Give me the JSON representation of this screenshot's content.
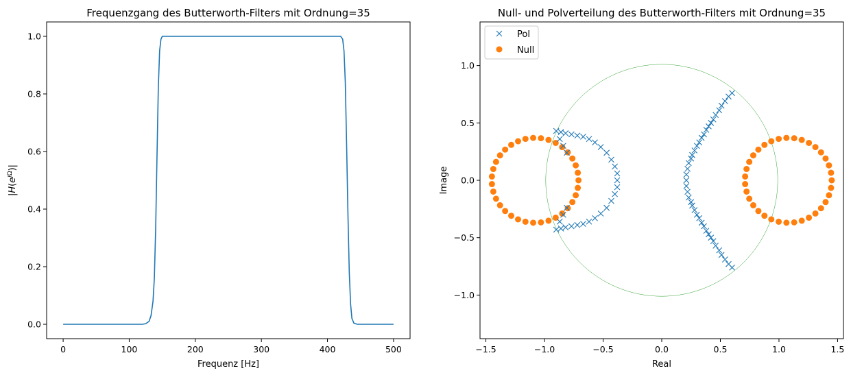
{
  "chart_data": [
    {
      "type": "line",
      "title": "Frequenzgang des Butterworth-Filters mit Ordnung=35",
      "xlabel": "Frequenz [Hz]",
      "ylabel": "|H(e^{jΩ})|",
      "xlim": [
        -25,
        525
      ],
      "ylim": [
        -0.05,
        1.05
      ],
      "xticks": [
        0,
        100,
        200,
        300,
        400,
        500
      ],
      "xtick_labels": [
        "0",
        "100",
        "200",
        "300",
        "400",
        "500"
      ],
      "yticks": [
        0.0,
        0.2,
        0.4,
        0.6,
        0.8,
        1.0
      ],
      "ytick_labels": [
        "0.0",
        "0.2",
        "0.4",
        "0.6",
        "0.8",
        "1.0"
      ],
      "series": [
        {
          "color": "#1f77b4",
          "x": [
            0,
            100,
            120,
            125,
            130,
            133,
            136,
            138,
            140,
            142,
            144,
            146,
            148,
            150,
            155,
            200,
            300,
            400,
            420,
            423,
            425,
            427,
            429,
            431,
            433,
            435,
            437,
            440,
            445,
            450,
            500
          ],
          "y": [
            0,
            0,
            0.0,
            0.002,
            0.01,
            0.03,
            0.08,
            0.16,
            0.33,
            0.58,
            0.82,
            0.95,
            0.99,
            1.0,
            1.0,
            1.0,
            1.0,
            1.0,
            1.0,
            0.99,
            0.95,
            0.84,
            0.62,
            0.38,
            0.18,
            0.07,
            0.02,
            0.004,
            0.0,
            0.0,
            0.0
          ]
        }
      ],
      "grid": false
    },
    {
      "type": "scatter",
      "title": "Null- und Polverteilung des Butterworth-Filters mit Ordnung=35",
      "xlabel": "Real",
      "ylabel": "Image",
      "xlim": [
        -1.55,
        1.55
      ],
      "ylim": [
        -1.38,
        1.38
      ],
      "xticks": [
        -1.5,
        -1.0,
        -0.5,
        0.0,
        0.5,
        1.0,
        1.5
      ],
      "xtick_labels": [
        "−1.5",
        "−1.0",
        "−0.5",
        "0.0",
        "0.5",
        "1.0",
        "1.5"
      ],
      "yticks": [
        -1.0,
        -0.5,
        0.0,
        0.5,
        1.0
      ],
      "ytick_labels": [
        "−1.0",
        "−0.5",
        "0.0",
        "0.5",
        "1.0"
      ],
      "legend": {
        "position": "top-left",
        "entries": [
          {
            "label": "Pol",
            "marker": "x",
            "color": "#1f77b4"
          },
          {
            "label": "Null",
            "marker": "o",
            "color": "#ff7f0e"
          }
        ]
      },
      "unit_circle": {
        "radius": 1.0,
        "color": "#2ca02c"
      },
      "poles_right": [
        [
          0.6,
          -0.76
        ],
        [
          0.57,
          -0.73
        ],
        [
          0.54,
          -0.69
        ],
        [
          0.51,
          -0.65
        ],
        [
          0.49,
          -0.61
        ],
        [
          0.46,
          -0.57
        ],
        [
          0.44,
          -0.53
        ],
        [
          0.42,
          -0.5
        ],
        [
          0.4,
          -0.47
        ],
        [
          0.38,
          -0.44
        ],
        [
          0.36,
          -0.4
        ],
        [
          0.34,
          -0.37
        ],
        [
          0.32,
          -0.33
        ],
        [
          0.3,
          -0.3
        ],
        [
          0.28,
          -0.26
        ],
        [
          0.26,
          -0.22
        ],
        [
          0.25,
          -0.19
        ],
        [
          0.23,
          -0.15
        ],
        [
          0.22,
          -0.1
        ],
        [
          0.21,
          -0.05
        ],
        [
          0.21,
          0.0
        ],
        [
          0.21,
          0.05
        ],
        [
          0.22,
          0.1
        ],
        [
          0.23,
          0.15
        ],
        [
          0.25,
          0.19
        ],
        [
          0.26,
          0.22
        ],
        [
          0.28,
          0.26
        ],
        [
          0.3,
          0.3
        ],
        [
          0.32,
          0.33
        ],
        [
          0.34,
          0.37
        ],
        [
          0.36,
          0.4
        ],
        [
          0.38,
          0.44
        ],
        [
          0.4,
          0.47
        ],
        [
          0.42,
          0.5
        ],
        [
          0.44,
          0.53
        ],
        [
          0.46,
          0.57
        ],
        [
          0.49,
          0.61
        ],
        [
          0.51,
          0.65
        ],
        [
          0.54,
          0.69
        ],
        [
          0.57,
          0.73
        ],
        [
          0.6,
          0.76
        ]
      ],
      "poles_left": [
        [
          -0.9,
          -0.43
        ],
        [
          -0.86,
          -0.42
        ],
        [
          -0.82,
          -0.41
        ],
        [
          -0.77,
          -0.4
        ],
        [
          -0.72,
          -0.39
        ],
        [
          -0.67,
          -0.38
        ],
        [
          -0.62,
          -0.36
        ],
        [
          -0.57,
          -0.33
        ],
        [
          -0.52,
          -0.29
        ],
        [
          -0.47,
          -0.24
        ],
        [
          -0.43,
          -0.18
        ],
        [
          -0.4,
          -0.12
        ],
        [
          -0.38,
          -0.06
        ],
        [
          -0.38,
          0.0
        ],
        [
          -0.38,
          0.06
        ],
        [
          -0.4,
          0.12
        ],
        [
          -0.43,
          0.18
        ],
        [
          -0.47,
          0.24
        ],
        [
          -0.52,
          0.29
        ],
        [
          -0.57,
          0.33
        ],
        [
          -0.62,
          0.36
        ],
        [
          -0.67,
          0.38
        ],
        [
          -0.72,
          0.39
        ],
        [
          -0.77,
          0.4
        ],
        [
          -0.82,
          0.41
        ],
        [
          -0.86,
          0.42
        ],
        [
          -0.9,
          0.43
        ],
        [
          -0.87,
          -0.36
        ],
        [
          -0.84,
          -0.3
        ],
        [
          -0.81,
          -0.24
        ],
        [
          -0.87,
          0.36
        ],
        [
          -0.84,
          0.3
        ],
        [
          -0.81,
          0.24
        ]
      ],
      "zeros_right": {
        "center_x": 1.08,
        "center_y": 0.0,
        "radius": 0.37,
        "count": 35
      },
      "zeros_left": {
        "center_x": -1.08,
        "center_y": 0.0,
        "radius": 0.37,
        "count": 35
      }
    }
  ]
}
